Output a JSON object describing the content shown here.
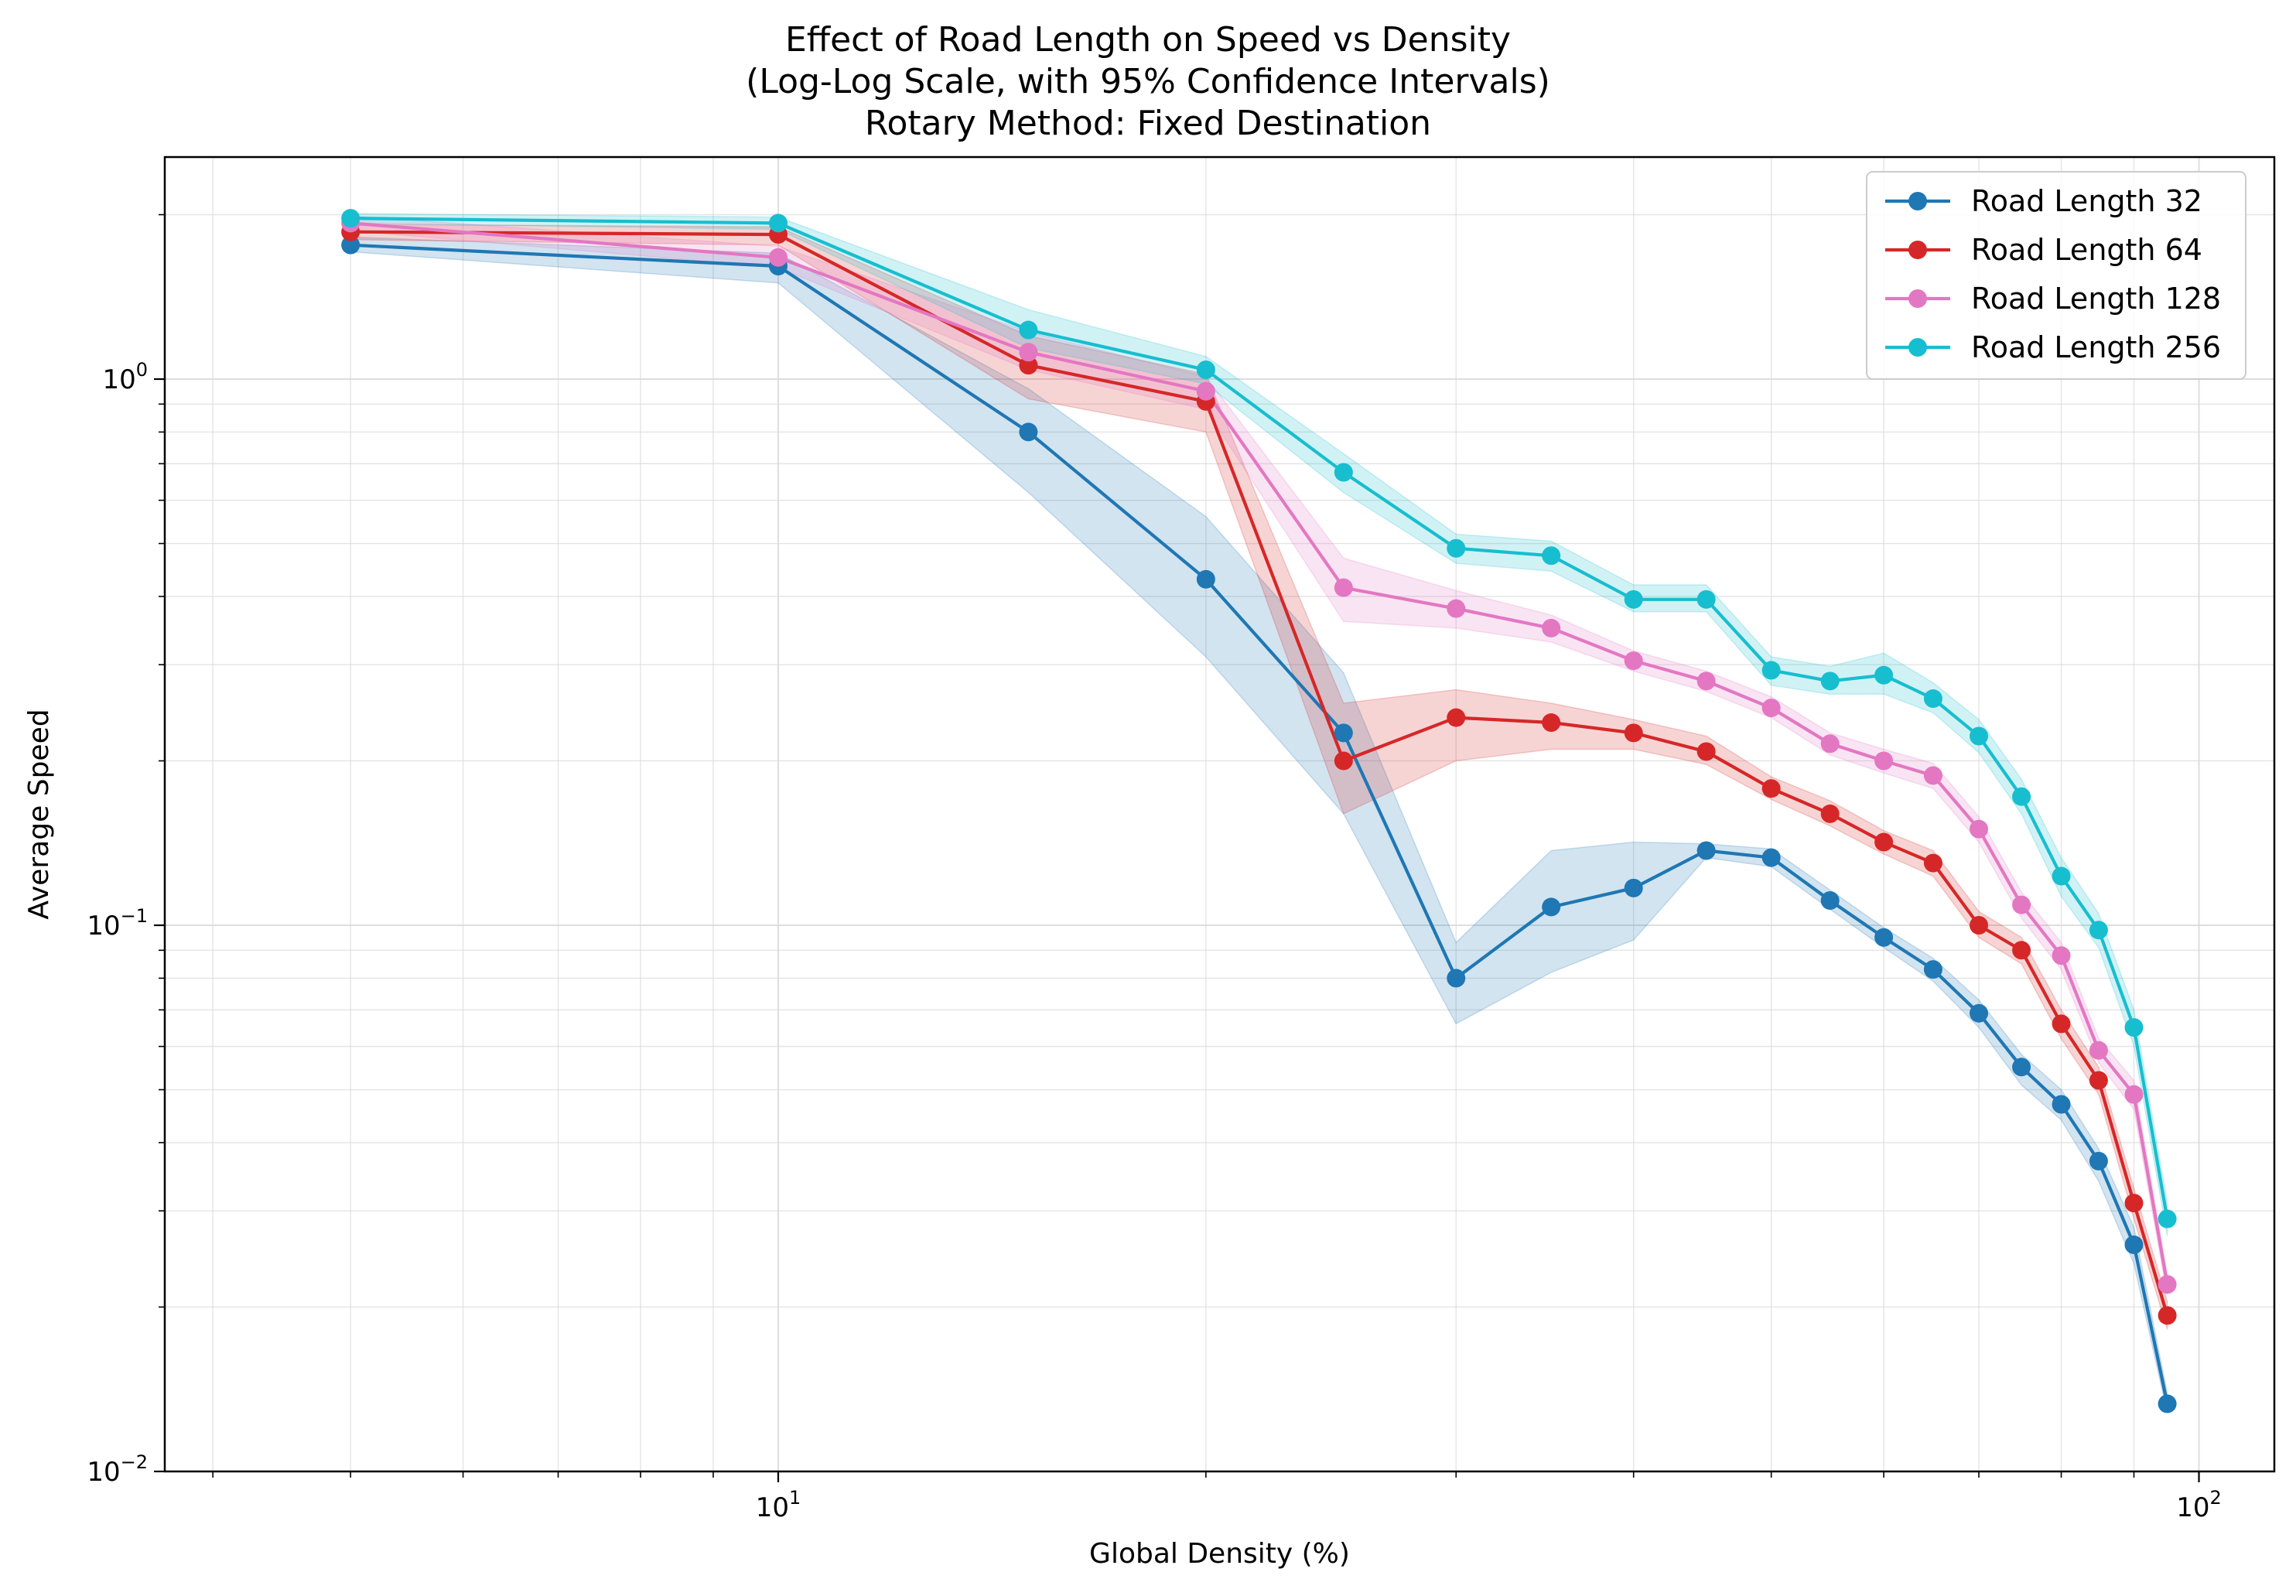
{
  "title_lines": [
    "Effect of Road Length on Speed vs Density",
    "(Log-Log Scale, with 95% Confidence Intervals)",
    "Rotary Method: Fixed Destination"
  ],
  "chart_data": {
    "type": "line",
    "title": "Effect of Road Length on Speed vs Density\n(Log-Log Scale, with 95% Confidence Intervals)\nRotary Method: Fixed Destination",
    "xlabel": "Global Density (%)",
    "ylabel": "Average Speed",
    "xscale": "log",
    "yscale": "log",
    "xlim": [
      3.7,
      113
    ],
    "ylim": [
      0.01,
      2.55
    ],
    "grid": true,
    "legend_position": "top-right",
    "x_ticks": [
      {
        "value": 10,
        "base": "10",
        "exp": "1"
      },
      {
        "value": 100,
        "base": "10",
        "exp": "2"
      }
    ],
    "y_ticks": [
      {
        "value": 0.01,
        "base": "10",
        "exp": "−2"
      },
      {
        "value": 0.1,
        "base": "10",
        "exp": "−1"
      },
      {
        "value": 1,
        "base": "10",
        "exp": "0"
      }
    ],
    "x": [
      5,
      10,
      15,
      20,
      25,
      30,
      35,
      40,
      45,
      50,
      55,
      60,
      65,
      70,
      75,
      80,
      85,
      90,
      95
    ],
    "series": [
      {
        "name": "Road Length 32",
        "color": "#1f77b4",
        "values": [
          1.76,
          1.61,
          0.8,
          0.43,
          0.225,
          0.08,
          0.108,
          0.117,
          0.137,
          0.133,
          0.111,
          0.095,
          0.083,
          0.069,
          0.055,
          0.047,
          0.037,
          0.026,
          0.0133
        ],
        "lower": [
          1.71,
          1.5,
          0.62,
          0.31,
          0.16,
          0.066,
          0.082,
          0.094,
          0.133,
          0.128,
          0.107,
          0.091,
          0.079,
          0.065,
          0.051,
          0.044,
          0.034,
          0.024,
          0.0128
        ],
        "upper": [
          1.82,
          1.7,
          0.96,
          0.56,
          0.29,
          0.093,
          0.137,
          0.142,
          0.141,
          0.138,
          0.116,
          0.099,
          0.087,
          0.073,
          0.058,
          0.05,
          0.039,
          0.028,
          0.0139
        ]
      },
      {
        "name": "Road Length 64",
        "color": "#d62728",
        "values": [
          1.86,
          1.84,
          1.06,
          0.91,
          0.2,
          0.24,
          0.235,
          0.225,
          0.208,
          0.178,
          0.16,
          0.142,
          0.13,
          0.1,
          0.09,
          0.066,
          0.052,
          0.031,
          0.0193
        ],
        "lower": [
          1.8,
          1.76,
          0.92,
          0.8,
          0.16,
          0.2,
          0.21,
          0.21,
          0.197,
          0.17,
          0.152,
          0.135,
          0.123,
          0.095,
          0.085,
          0.062,
          0.049,
          0.029,
          0.0182
        ],
        "upper": [
          1.92,
          1.9,
          1.2,
          1.02,
          0.255,
          0.27,
          0.255,
          0.238,
          0.222,
          0.187,
          0.169,
          0.149,
          0.137,
          0.106,
          0.095,
          0.07,
          0.055,
          0.033,
          0.0205
        ]
      },
      {
        "name": "Road Length 128",
        "color": "#e377c2",
        "values": [
          1.93,
          1.67,
          1.12,
          0.95,
          0.415,
          0.38,
          0.35,
          0.305,
          0.28,
          0.25,
          0.215,
          0.2,
          0.188,
          0.15,
          0.109,
          0.088,
          0.059,
          0.049,
          0.022
        ],
        "lower": [
          1.87,
          1.6,
          1.04,
          0.88,
          0.36,
          0.35,
          0.33,
          0.292,
          0.268,
          0.24,
          0.205,
          0.19,
          0.178,
          0.142,
          0.103,
          0.083,
          0.056,
          0.046,
          0.021
        ],
        "upper": [
          1.99,
          1.75,
          1.22,
          1.01,
          0.47,
          0.41,
          0.37,
          0.318,
          0.292,
          0.262,
          0.225,
          0.21,
          0.198,
          0.158,
          0.115,
          0.093,
          0.062,
          0.052,
          0.023
        ]
      },
      {
        "name": "Road Length 256",
        "color": "#17becf",
        "values": [
          1.97,
          1.93,
          1.23,
          1.04,
          0.675,
          0.49,
          0.475,
          0.395,
          0.395,
          0.293,
          0.28,
          0.287,
          0.26,
          0.222,
          0.172,
          0.123,
          0.098,
          0.065,
          0.029
        ],
        "lower": [
          1.93,
          1.88,
          1.14,
          0.98,
          0.62,
          0.46,
          0.445,
          0.375,
          0.375,
          0.275,
          0.265,
          0.265,
          0.245,
          0.207,
          0.16,
          0.113,
          0.091,
          0.06,
          0.027
        ],
        "upper": [
          2.01,
          1.98,
          1.34,
          1.1,
          0.73,
          0.52,
          0.505,
          0.42,
          0.42,
          0.31,
          0.298,
          0.315,
          0.278,
          0.238,
          0.185,
          0.133,
          0.105,
          0.07,
          0.031
        ]
      }
    ]
  }
}
